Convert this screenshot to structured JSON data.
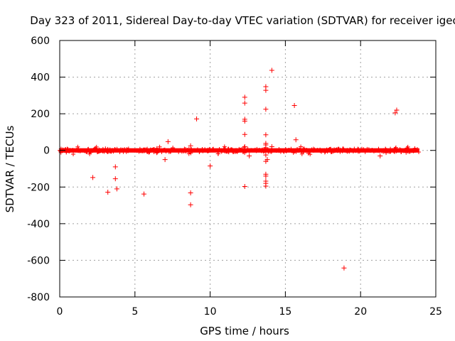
{
  "chart_data": {
    "type": "scatter",
    "title": "Day 323 of 2011, Sidereal Day-to-day VTEC variation (SDTVAR) for receiver igeo",
    "xlabel": "GPS time / hours",
    "ylabel": "SDTVAR / TECUs",
    "xlim": [
      0,
      25
    ],
    "ylim": [
      -800,
      600
    ],
    "xticks": [
      "0",
      "5",
      "10",
      "15",
      "20",
      "25"
    ],
    "yticks": [
      "600",
      "400",
      "200",
      "0",
      "-200",
      "-400",
      "-600",
      "-800"
    ],
    "grid": true,
    "marker": "+",
    "color": "#ff0000",
    "dense_band": {
      "x": [
        0,
        23.9
      ],
      "y": [
        -8,
        8
      ],
      "description_hidden": true
    },
    "series": [
      {
        "name": "SDTVAR",
        "points": [
          [
            2.2,
            -148
          ],
          [
            3.2,
            -228
          ],
          [
            3.7,
            -90
          ],
          [
            3.7,
            -155
          ],
          [
            3.8,
            -210
          ],
          [
            5.6,
            -238
          ],
          [
            7.0,
            -50
          ],
          [
            7.2,
            48
          ],
          [
            8.7,
            25
          ],
          [
            8.7,
            -232
          ],
          [
            8.7,
            -297
          ],
          [
            9.1,
            172
          ],
          [
            10.0,
            -85
          ],
          [
            12.3,
            290
          ],
          [
            12.3,
            258
          ],
          [
            12.3,
            170
          ],
          [
            12.3,
            160
          ],
          [
            12.3,
            87
          ],
          [
            12.3,
            20
          ],
          [
            12.3,
            -197
          ],
          [
            12.6,
            -30
          ],
          [
            13.7,
            348
          ],
          [
            13.7,
            328
          ],
          [
            13.7,
            225
          ],
          [
            13.7,
            85
          ],
          [
            13.7,
            38
          ],
          [
            13.7,
            30
          ],
          [
            13.7,
            15
          ],
          [
            13.7,
            -25
          ],
          [
            13.8,
            -50
          ],
          [
            13.7,
            -60
          ],
          [
            13.7,
            -130
          ],
          [
            13.7,
            -140
          ],
          [
            13.7,
            -168
          ],
          [
            13.7,
            -180
          ],
          [
            13.7,
            -195
          ],
          [
            14.1,
            437
          ],
          [
            14.1,
            20
          ],
          [
            15.6,
            245
          ],
          [
            15.7,
            58
          ],
          [
            18.9,
            -642
          ],
          [
            21.3,
            -30
          ],
          [
            22.4,
            220
          ],
          [
            22.3,
            205
          ]
        ]
      }
    ]
  }
}
